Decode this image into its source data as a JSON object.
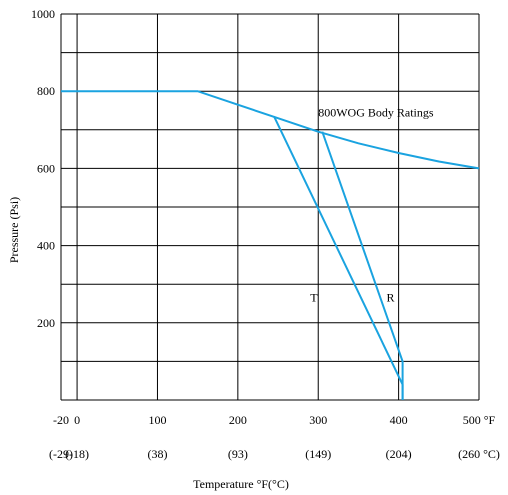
{
  "chart_data": {
    "type": "line",
    "title": "",
    "xlabel": "Temperature °F(°C)",
    "ylabel": "Pressure (Psi)",
    "xlim": [
      -20,
      500
    ],
    "ylim": [
      0,
      1000
    ],
    "grid": true,
    "x_ticks": [
      {
        "value": -20,
        "f": "-20",
        "c": "(-29)"
      },
      {
        "value": 0,
        "f": "0",
        "c": "(-18)"
      },
      {
        "value": 100,
        "f": "100",
        "c": "(38)"
      },
      {
        "value": 200,
        "f": "200",
        "c": "(93)"
      },
      {
        "value": 300,
        "f": "300",
        "c": "(149)"
      },
      {
        "value": 400,
        "f": "400",
        "c": "(204)"
      },
      {
        "value": 500,
        "f": "500 °F",
        "c": "(260 °C)"
      }
    ],
    "x_gridlines": [
      -20,
      0,
      100,
      200,
      300,
      400,
      500
    ],
    "y_ticks": [
      {
        "value": 1000,
        "label": "1000"
      },
      {
        "value": 800,
        "label": "800"
      },
      {
        "value": 600,
        "label": "600"
      },
      {
        "value": 400,
        "label": "400"
      },
      {
        "value": 200,
        "label": "200"
      }
    ],
    "y_gridlines": [
      0,
      100,
      200,
      300,
      400,
      500,
      600,
      700,
      800,
      900,
      1000
    ],
    "series": [
      {
        "name": "800WOG Body Ratings",
        "points": [
          [
            -20,
            800
          ],
          [
            150,
            800
          ],
          [
            200,
            765
          ],
          [
            250,
            730
          ],
          [
            300,
            695
          ],
          [
            350,
            665
          ],
          [
            400,
            640
          ],
          [
            450,
            618
          ],
          [
            500,
            600
          ]
        ]
      },
      {
        "name": "T",
        "points": [
          [
            245,
            735
          ],
          [
            405,
            40
          ],
          [
            405,
            0
          ]
        ]
      },
      {
        "name": "R",
        "points": [
          [
            305,
            695
          ],
          [
            405,
            100
          ],
          [
            405,
            0
          ]
        ]
      }
    ],
    "annotations": [
      {
        "text": "800WOG Body Ratings",
        "x": 300,
        "y": 735
      },
      {
        "text": "T",
        "x": 290,
        "y": 255
      },
      {
        "text": "R",
        "x": 385,
        "y": 255
      }
    ],
    "line_color": "#1aa3e0",
    "grid_color": "#000000"
  }
}
